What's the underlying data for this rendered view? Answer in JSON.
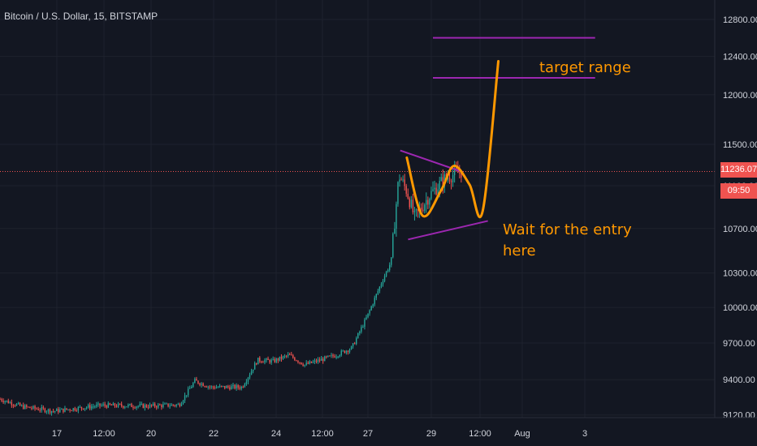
{
  "header": {
    "symbol_title": "Bitcoin / U.S. Dollar, 15, BITSTAMP"
  },
  "annotations": {
    "target_label": "target range",
    "entry_label_line1": "Wait for the entry",
    "entry_label_line2": "here"
  },
  "price_tag": {
    "price": "11236.07",
    "countdown": "09:50"
  },
  "colors": {
    "background": "#131722",
    "grid": "#1e222d",
    "up_candle": "#26a69a",
    "down_candle": "#ef5350",
    "price_line": "#ef5350",
    "annotation_orange": "#ff9800",
    "annotation_purple": "#9c27b0",
    "axis_text": "#d1d4dc"
  },
  "chart_data": {
    "type": "candlestick",
    "title": "Bitcoin / U.S. Dollar, 15, BITSTAMP",
    "ylim": [
      9000,
      12950
    ],
    "y_ticks": [
      9120,
      9400,
      9700,
      10000,
      10300,
      10700,
      11100,
      11500,
      12000,
      12400,
      12800
    ],
    "y_tick_labels": [
      "9120.00",
      "9400.00",
      "9700.00",
      "10000.00",
      "10300.00",
      "10700.00",
      "11100.00",
      "11500.00",
      "12000.00",
      "12400.00",
      "12800.00"
    ],
    "x_tick_labels": [
      "17",
      "12:00",
      "20",
      "22",
      "24",
      "12:00",
      "27",
      "29",
      "12:00",
      "Aug",
      "3"
    ],
    "current_price": 11236.07,
    "price_path": [
      {
        "x": "Jul 15 00:00",
        "y": 9270
      },
      {
        "x": "Jul 16 00:00",
        "y": 9185
      },
      {
        "x": "Jul 17 00:00",
        "y": 9150
      },
      {
        "x": "Jul 18 12:00",
        "y": 9195
      },
      {
        "x": "Jul 20 00:00",
        "y": 9190
      },
      {
        "x": "Jul 21 00:00",
        "y": 9200
      },
      {
        "x": "Jul 21 12:00",
        "y": 9390
      },
      {
        "x": "Jul 22 00:00",
        "y": 9340
      },
      {
        "x": "Jul 23 00:00",
        "y": 9340
      },
      {
        "x": "Jul 23 12:00",
        "y": 9560
      },
      {
        "x": "Jul 24 00:00",
        "y": 9550
      },
      {
        "x": "Jul 24 12:00",
        "y": 9600
      },
      {
        "x": "Jul 25 00:00",
        "y": 9520
      },
      {
        "x": "Jul 26 00:00",
        "y": 9600
      },
      {
        "x": "Jul 26 12:00",
        "y": 9660
      },
      {
        "x": "Jul 27 00:00",
        "y": 9930
      },
      {
        "x": "Jul 27 12:00",
        "y": 10250
      },
      {
        "x": "Jul 27 18:00",
        "y": 10400
      },
      {
        "x": "Jul 28 00:00",
        "y": 11200
      },
      {
        "x": "Jul 28 06:00",
        "y": 11050
      },
      {
        "x": "Jul 28 12:00",
        "y": 10800
      },
      {
        "x": "Jul 29 00:00",
        "y": 11020
      },
      {
        "x": "Jul 29 12:00",
        "y": 11180
      },
      {
        "x": "Jul 30 00:00",
        "y": 11236.07
      }
    ],
    "drawings": [
      {
        "type": "horizontal-line",
        "color": "purple",
        "y": 12600,
        "x_from": "Jul 29 02:00",
        "x_to": "Aug 3 06:00"
      },
      {
        "type": "horizontal-line",
        "color": "purple",
        "y": 12175,
        "x_from": "Jul 29 02:00",
        "x_to": "Aug 3 06:00"
      },
      {
        "type": "trend-line",
        "color": "purple",
        "points": [
          [
            "Jul 28 01:00",
            11440
          ],
          [
            "Jul 30 01:00",
            11230
          ]
        ]
      },
      {
        "type": "trend-line",
        "color": "purple",
        "points": [
          [
            "Jul 28 07:00",
            10600
          ],
          [
            "Jul 30 20:00",
            10770
          ]
        ]
      },
      {
        "type": "projection-curve",
        "color": "orange",
        "points": [
          [
            "Jul 28 06:00",
            11370
          ],
          [
            "Jul 28 18:00",
            10820
          ],
          [
            "Jul 29 08:00",
            11050
          ],
          [
            "Jul 29 18:00",
            11290
          ],
          [
            "Jul 30 06:00",
            11110
          ],
          [
            "Jul 30 16:00",
            10860
          ],
          [
            "Jul 31 04:00",
            12350
          ]
        ]
      }
    ]
  }
}
